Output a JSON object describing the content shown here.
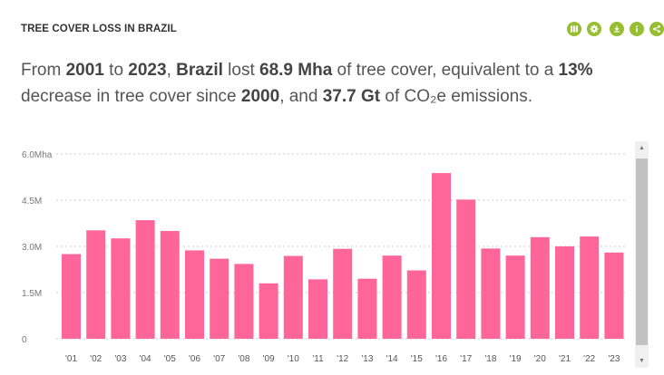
{
  "widget": {
    "title": "TREE COVER LOSS IN BRAZIL",
    "tools": [
      {
        "icon": "map-icon"
      },
      {
        "icon": "settings-icon"
      },
      {
        "icon": "download-icon"
      },
      {
        "icon": "info-icon"
      },
      {
        "icon": "share-icon"
      }
    ]
  },
  "sentence": {
    "from_label": "From ",
    "start_year": "2001",
    "to_label": " to ",
    "end_year": "2023",
    "sep1": ", ",
    "location": "Brazil",
    "lost_label": " lost ",
    "loss": "68.9 Mha",
    "of_label": " of tree cover, equivalent to a ",
    "percent": "13%",
    "decrease_label": " decrease in tree cover since ",
    "base_year": "2000",
    "and_label": ", and ",
    "emissions": "37.7 Gt",
    "emissions_unit": " of CO₂e emissions."
  },
  "chart_data": {
    "type": "bar",
    "color": "#fe6598",
    "categories": [
      "'01",
      "'02",
      "'03",
      "'04",
      "'05",
      "'06",
      "'07",
      "'08",
      "'09",
      "'10",
      "'11",
      "'12",
      "'13",
      "'14",
      "'15",
      "'16",
      "'17",
      "'18",
      "'19",
      "'20",
      "'21",
      "'22",
      "'23"
    ],
    "values": [
      2.75,
      3.52,
      3.26,
      3.85,
      3.5,
      2.87,
      2.6,
      2.43,
      1.8,
      2.69,
      1.93,
      2.92,
      1.95,
      2.7,
      2.22,
      5.38,
      4.52,
      2.93,
      2.7,
      3.3,
      3.0,
      3.32,
      2.8
    ],
    "yticks": [
      {
        "value": 0,
        "label": "0"
      },
      {
        "value": 1.5,
        "label": "1.5M"
      },
      {
        "value": 3.0,
        "label": "3.0M"
      },
      {
        "value": 4.5,
        "label": "4.5M"
      },
      {
        "value": 6.0,
        "label": "6.0Mha"
      }
    ],
    "ylim": [
      0,
      6.0
    ],
    "grid": true,
    "xlabel": "",
    "ylabel": ""
  }
}
